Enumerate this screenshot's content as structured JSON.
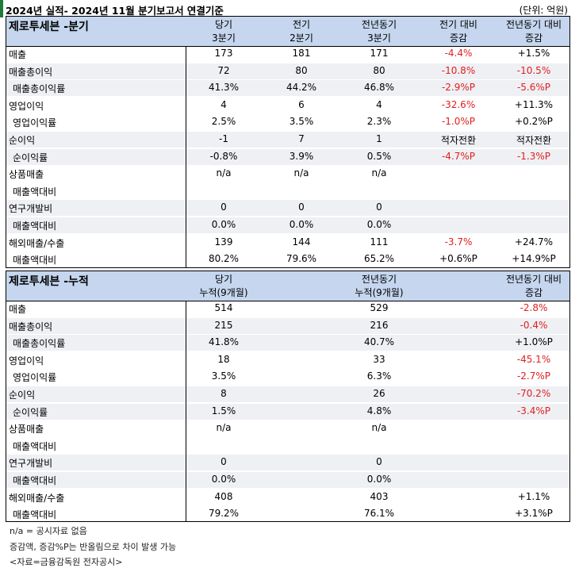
{
  "title": "2024년 실적- 2024년 11월 분기보고서 연결기준",
  "unit": "(단위: 억원)",
  "quarterly": {
    "section": "제로투세븐 -분기",
    "headers": [
      {
        "line1": "당기",
        "line2": "3분기"
      },
      {
        "line1": "전기",
        "line2": "2분기"
      },
      {
        "line1": "전년동기",
        "line2": "3분기"
      },
      {
        "line1": "전기 대비",
        "line2": "증감"
      },
      {
        "line1": "전년동기 대비",
        "line2": "증감"
      }
    ],
    "rows": [
      {
        "label": "매출",
        "values": [
          "173",
          "181",
          "171",
          "-4.4%",
          "+1.5%"
        ]
      },
      {
        "label": "매출총이익",
        "values": [
          "72",
          "80",
          "80",
          "-10.8%",
          "-10.5%"
        ]
      },
      {
        "label": "매출총이익률",
        "values": [
          "41.3%",
          "44.2%",
          "46.8%",
          "-2.9%P",
          "-5.6%P"
        ]
      },
      {
        "label": "영업이익",
        "values": [
          "4",
          "6",
          "4",
          "-32.6%",
          "+11.3%"
        ]
      },
      {
        "label": "영업이익률",
        "values": [
          "2.5%",
          "3.5%",
          "2.3%",
          "-1.0%P",
          "+0.2%P"
        ]
      },
      {
        "label": "순이익",
        "values": [
          "-1",
          "7",
          "1",
          "적자전환",
          "적자전환"
        ]
      },
      {
        "label": "순이익률",
        "values": [
          "-0.8%",
          "3.9%",
          "0.5%",
          "-4.7%P",
          "-1.3%P"
        ]
      },
      {
        "label": "상품매출",
        "values": [
          "n/a",
          "n/a",
          "n/a",
          "",
          ""
        ]
      },
      {
        "label": "매출액대비",
        "values": [
          "",
          "",
          "",
          "",
          ""
        ]
      },
      {
        "label": "연구개발비",
        "values": [
          "0",
          "0",
          "0",
          "",
          ""
        ]
      },
      {
        "label": "매출액대비",
        "values": [
          "0.0%",
          "0.0%",
          "0.0%",
          "",
          ""
        ]
      },
      {
        "label": "해외매출/수출",
        "values": [
          "139",
          "144",
          "111",
          "-3.7%",
          "+24.7%"
        ]
      },
      {
        "label": "매출액대비",
        "values": [
          "80.2%",
          "79.6%",
          "65.2%",
          "+0.6%P",
          "+14.9%P"
        ]
      }
    ]
  },
  "cumulative": {
    "section": "제로투세븐 -누적",
    "headers": [
      {
        "line1": "당기",
        "line2": "누적(9개월)"
      },
      {
        "line1": "전년동기",
        "line2": "누적(9개월)"
      },
      {
        "line1": "전년동기 대비",
        "line2": "증감"
      }
    ],
    "rows": [
      {
        "label": "매출",
        "values": [
          "514",
          "529",
          "-2.8%"
        ]
      },
      {
        "label": "매출총이익",
        "values": [
          "215",
          "216",
          "-0.4%"
        ]
      },
      {
        "label": "매출총이익률",
        "values": [
          "41.8%",
          "40.7%",
          "+1.0%P"
        ]
      },
      {
        "label": "영업이익",
        "values": [
          "18",
          "33",
          "-45.1%"
        ]
      },
      {
        "label": "영업이익률",
        "values": [
          "3.5%",
          "6.3%",
          "-2.7%P"
        ]
      },
      {
        "label": "순이익",
        "values": [
          "8",
          "26",
          "-70.2%"
        ]
      },
      {
        "label": "순이익률",
        "values": [
          "1.5%",
          "4.8%",
          "-3.4%P"
        ]
      },
      {
        "label": "상품매출",
        "values": [
          "n/a",
          "n/a",
          ""
        ]
      },
      {
        "label": "매출액대비",
        "values": [
          "",
          "",
          ""
        ]
      },
      {
        "label": "연구개발비",
        "values": [
          "0",
          "0",
          ""
        ]
      },
      {
        "label": "매출액대비",
        "values": [
          "0.0%",
          "0.0%",
          ""
        ]
      },
      {
        "label": "해외매출/수출",
        "values": [
          "408",
          "403",
          "+1.1%"
        ]
      },
      {
        "label": "매출액대비",
        "values": [
          "79.2%",
          "76.1%",
          "+3.1%P"
        ]
      }
    ]
  },
  "notes": [
    "n/a = 공시자료 없음",
    "증감액, 증감%P는 반올림으로 차이 발생 가능",
    "<자료=금융감독원 전자공시>"
  ],
  "colors": {
    "header_bg": "#c5d6ee",
    "shade_bg": "#eef0f4",
    "negative": "#e02020"
  }
}
